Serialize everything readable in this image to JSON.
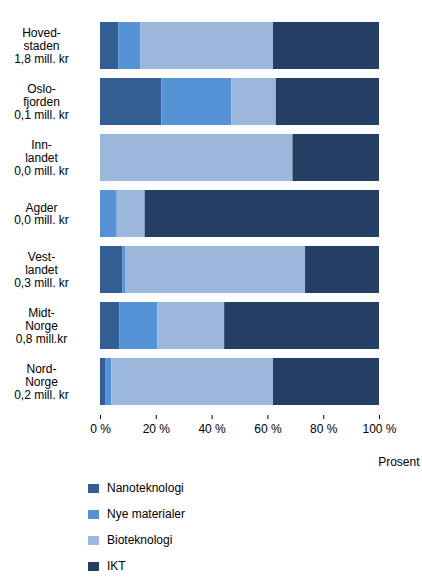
{
  "chart_data": {
    "type": "bar",
    "orientation": "horizontal",
    "stacked": true,
    "xlabel": "Prosent",
    "categories": [
      "Hoved-\nstaden\n1,8 mill. kr",
      "Oslo-\nfjorden\n0,1 mill. kr",
      "Inn-\nlandet\n0,0 mill. kr",
      "Agder\n0,0 mill. kr",
      "Vest-\nlandet\n0,3 mill. kr",
      "Midt-\nNorge\n0,8 mill.kr",
      "Nord-\nNorge\n0,2 mill. kr"
    ],
    "series": [
      {
        "name": "Nanoteknologi",
        "color": "#335e94",
        "values": [
          6.5,
          22,
          0,
          0,
          8,
          7,
          2
        ]
      },
      {
        "name": "Nye materialer",
        "color": "#5592d6",
        "values": [
          8,
          25,
          0,
          6,
          1,
          13.5,
          2
        ]
      },
      {
        "name": "Bioteknologi",
        "color": "#9ab8dc",
        "values": [
          47.5,
          16,
          69,
          10,
          64.5,
          24,
          58
        ]
      },
      {
        "name": "IKT",
        "color": "#243f63",
        "values": [
          38,
          37,
          31,
          84,
          26.5,
          55.5,
          38
        ]
      }
    ],
    "xlim": [
      0,
      100
    ],
    "xticks": [
      {
        "value": 0,
        "label": "0 %"
      },
      {
        "value": 20,
        "label": "20 %"
      },
      {
        "value": 40,
        "label": "40 %"
      },
      {
        "value": 60,
        "label": "60 %"
      },
      {
        "value": 80,
        "label": "80 %"
      },
      {
        "value": 100,
        "label": "100 %"
      }
    ],
    "grid": false,
    "legend": "bottom-left"
  }
}
